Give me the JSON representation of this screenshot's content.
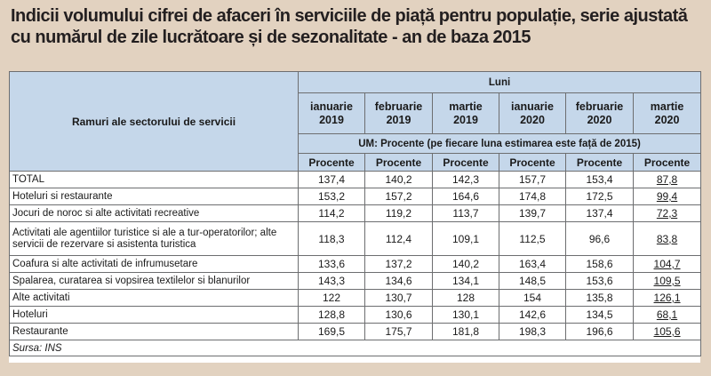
{
  "title": "Indicii volumului cifrei de afaceri în serviciile de piață pentru populație, serie ajustată cu numărul de zile lucrătoare și de sezonalitate - an de baza 2015",
  "table": {
    "row_header": "Ramuri ale sectorului de servicii",
    "group_header": "Luni",
    "months": [
      {
        "month": "ianuarie",
        "year": "2019"
      },
      {
        "month": "februarie",
        "year": "2019"
      },
      {
        "month": "martie",
        "year": "2019"
      },
      {
        "month": "ianuarie",
        "year": "2020"
      },
      {
        "month": "februarie",
        "year": "2020"
      },
      {
        "month": "martie",
        "year": "2020"
      }
    ],
    "unit_note": "UM: Procente (pe fiecare luna estimarea este față de 2015)",
    "unit_label": "Procente",
    "rows": [
      {
        "name": "TOTAL",
        "values": [
          "137,4",
          "140,2",
          "142,3",
          "157,7",
          "153,4",
          "87,8"
        ]
      },
      {
        "name": "Hoteluri si restaurante",
        "values": [
          "153,2",
          "157,2",
          "164,6",
          "174,8",
          "172,5",
          "99,4"
        ]
      },
      {
        "name": "Jocuri de noroc si alte activitati recreative",
        "values": [
          "114,2",
          "119,2",
          "113,7",
          "139,7",
          "137,4",
          "72,3"
        ]
      },
      {
        "name": "Activitati ale agentiilor turistice si ale a tur-operatorilor; alte servicii de rezervare si asistenta turistica",
        "values": [
          "118,3",
          "112,4",
          "109,1",
          "112,5",
          "96,6",
          "83,8"
        ]
      },
      {
        "name": "Coafura si alte activitati de infrumusetare",
        "values": [
          "133,6",
          "137,2",
          "140,2",
          "163,4",
          "158,6",
          "104,7"
        ]
      },
      {
        "name": "Spalarea, curatarea si vopsirea textilelor si blanurilor",
        "values": [
          "143,3",
          "134,6",
          "134,1",
          "148,5",
          "153,6",
          "109,5"
        ]
      },
      {
        "name": "Alte activitati",
        "values": [
          "122",
          "130,7",
          "128",
          "154",
          "135,8",
          "126,1"
        ]
      },
      {
        "name": "Hoteluri",
        "values": [
          "128,8",
          "130,6",
          "130,1",
          "142,6",
          "134,5",
          "68,1"
        ]
      },
      {
        "name": "Restaurante",
        "values": [
          "169,5",
          "175,7",
          "181,8",
          "198,3",
          "196,6",
          "105,6"
        ]
      }
    ],
    "source": "Sursa: INS"
  }
}
